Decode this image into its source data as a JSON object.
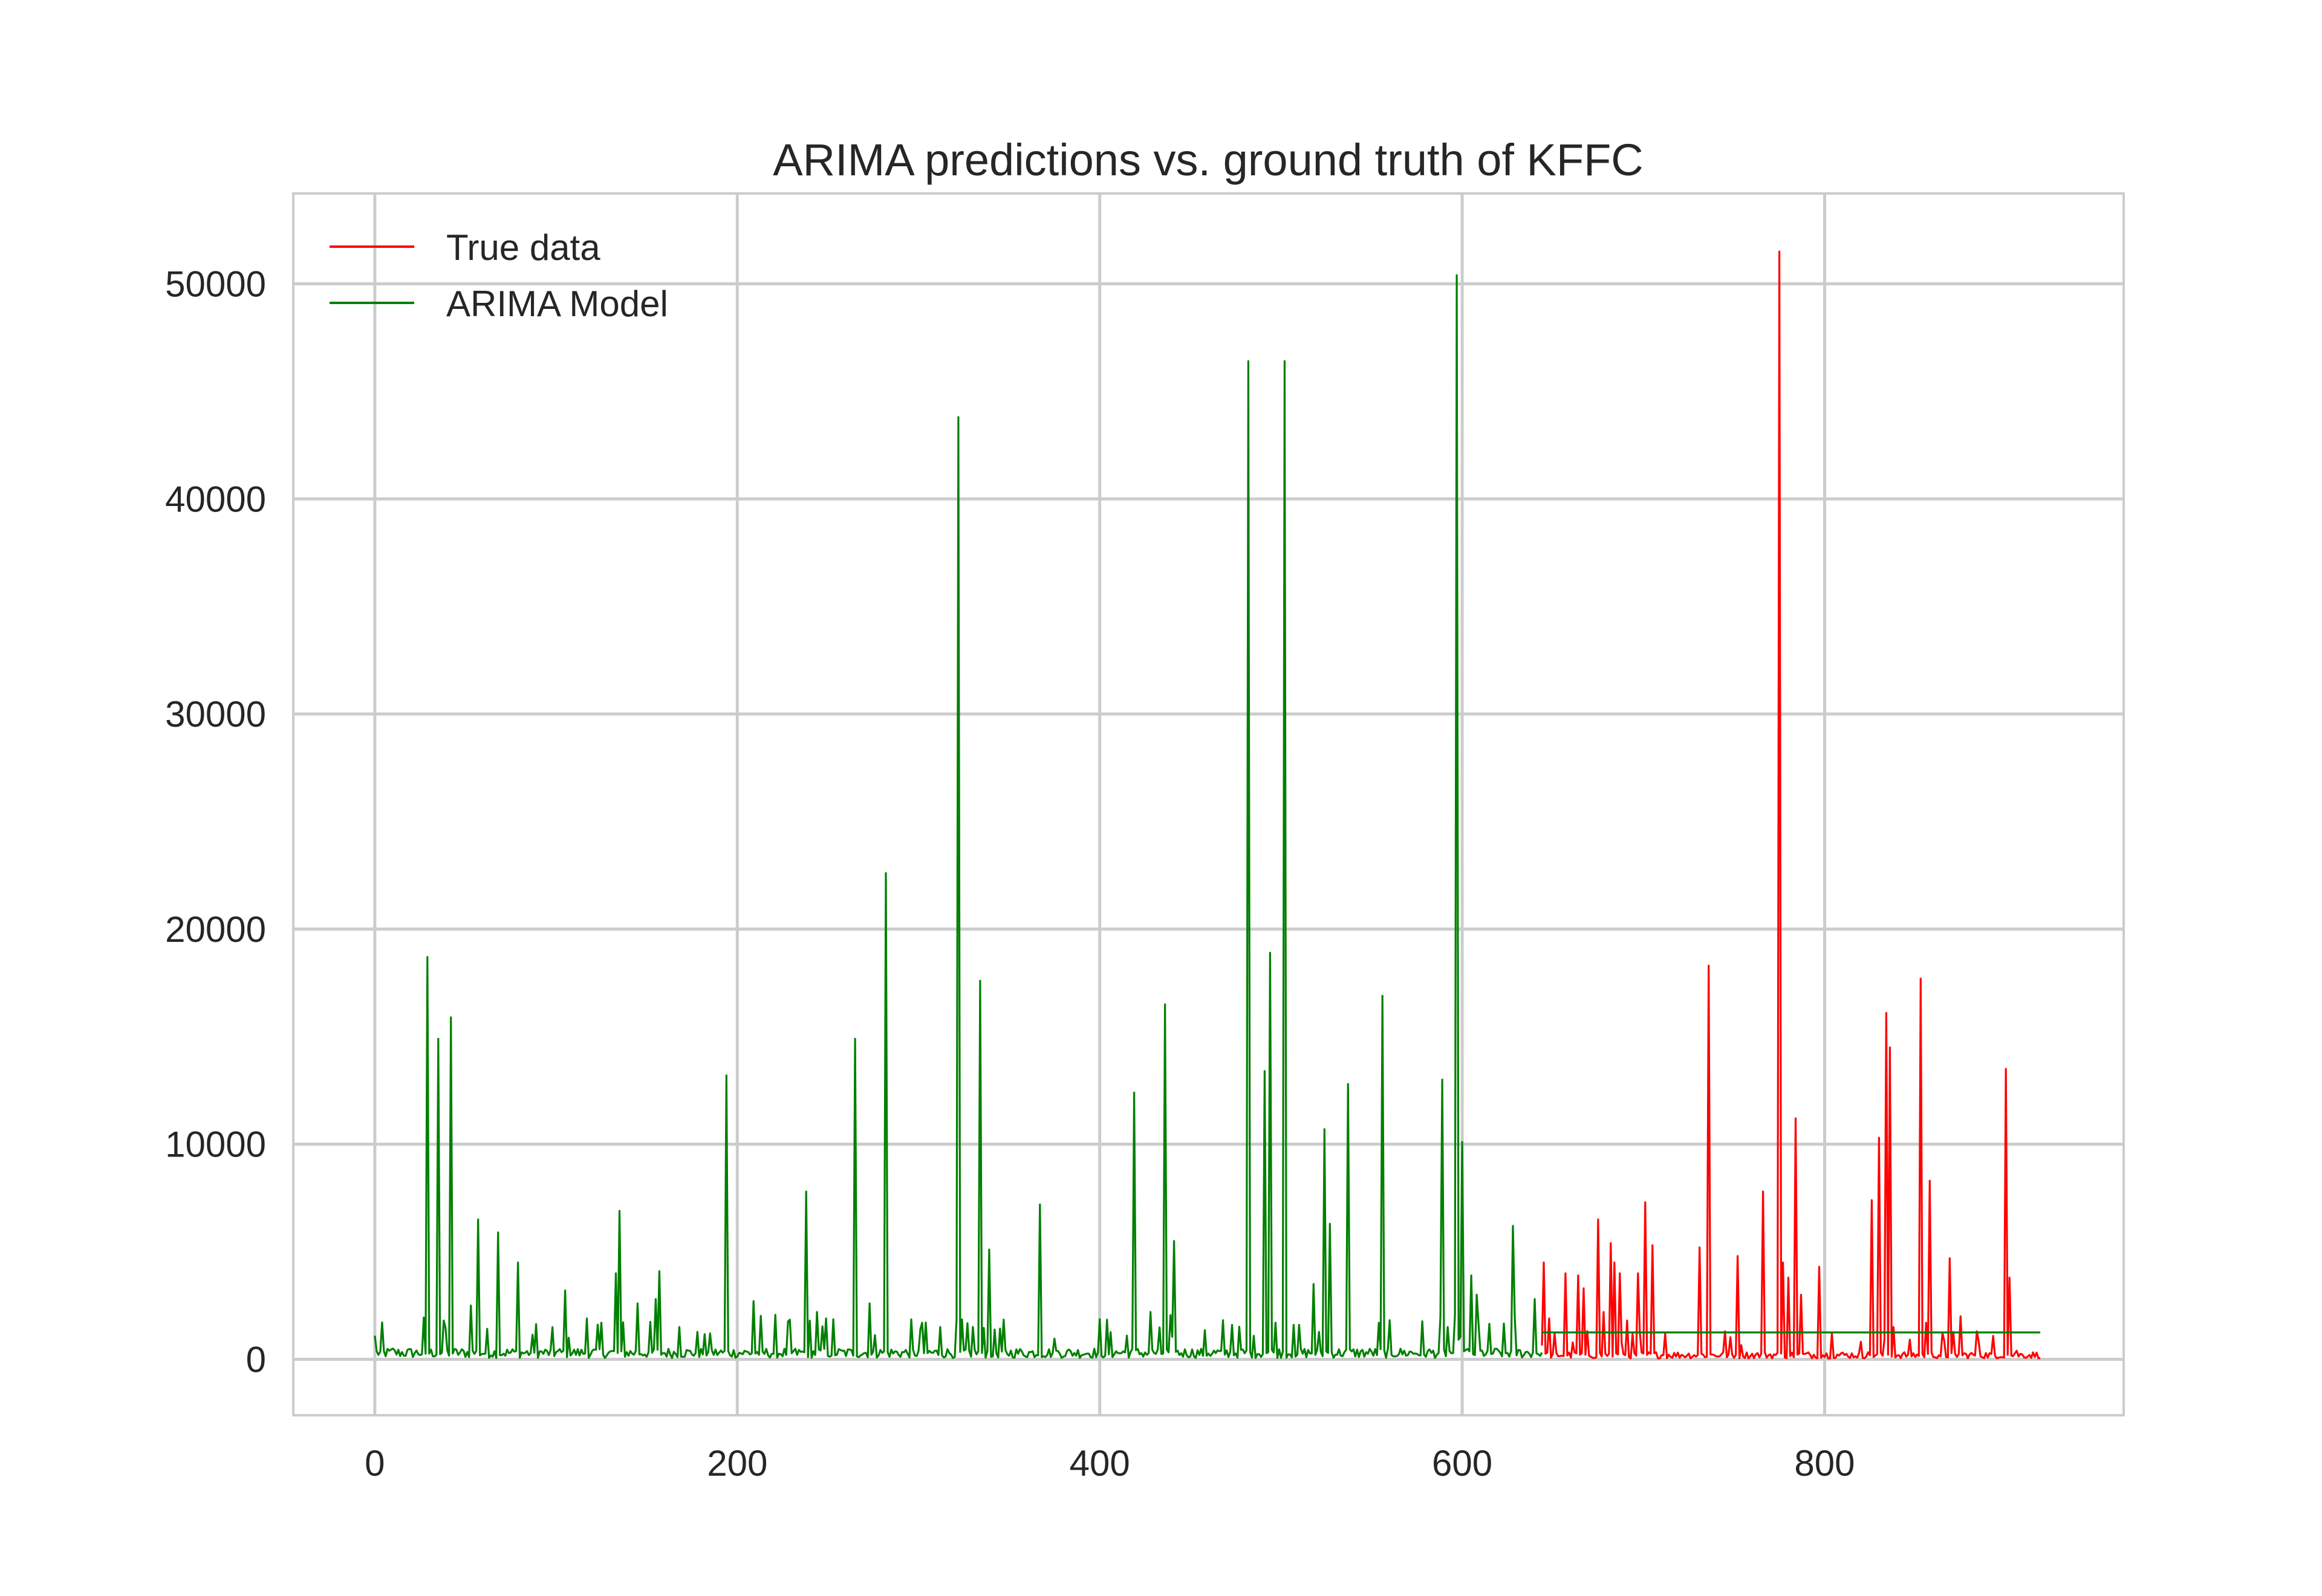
{
  "chart_data": {
    "type": "line",
    "title": "ARIMA predictions vs. ground truth of KFFC",
    "xlabel": "",
    "ylabel": "",
    "xlim": [
      -45,
      965
    ],
    "ylim": [
      -2600,
      54200
    ],
    "x_ticks": [
      0,
      200,
      400,
      600,
      800
    ],
    "x_tick_labels": [
      "0",
      "200",
      "400",
      "600",
      "800"
    ],
    "y_ticks": [
      0,
      10000,
      20000,
      30000,
      40000,
      50000
    ],
    "y_tick_labels": [
      "0",
      "10000",
      "20000",
      "30000",
      "40000",
      "50000"
    ],
    "grid": true,
    "legend": "upper left",
    "series": [
      {
        "name": "True data",
        "color": "#ff0000",
        "x_start": 644,
        "x_end": 919,
        "baseline": 200,
        "peaks": [
          [
            645,
            4500
          ],
          [
            648,
            1900
          ],
          [
            657,
            4000
          ],
          [
            664,
            3900
          ],
          [
            667,
            3300
          ],
          [
            675,
            6500
          ],
          [
            678,
            2200
          ],
          [
            682,
            5400
          ],
          [
            684,
            4500
          ],
          [
            687,
            4000
          ],
          [
            691,
            1800
          ],
          [
            697,
            4000
          ],
          [
            701,
            7300
          ],
          [
            705,
            5300
          ],
          [
            712,
            1200
          ],
          [
            731,
            5200
          ],
          [
            736,
            18300
          ],
          [
            745,
            1300
          ],
          [
            752,
            4800
          ],
          [
            766,
            7800
          ],
          [
            775,
            51500
          ],
          [
            777,
            4500
          ],
          [
            780,
            3800
          ],
          [
            784,
            11200
          ],
          [
            787,
            3000
          ],
          [
            797,
            4300
          ],
          [
            804,
            1200
          ],
          [
            826,
            7400
          ],
          [
            830,
            10300
          ],
          [
            834,
            16100
          ],
          [
            836,
            14500
          ],
          [
            838,
            1500
          ],
          [
            853,
            17700
          ],
          [
            856,
            1700
          ],
          [
            858,
            8300
          ],
          [
            869,
            4700
          ],
          [
            875,
            2000
          ],
          [
            884,
            1300
          ],
          [
            900,
            13500
          ],
          [
            902,
            3800
          ],
          [
            906,
            400
          ]
        ]
      },
      {
        "name": "ARIMA Model",
        "color": "#008000",
        "fit_end": 644,
        "forecast": [
          [
            644,
            1250
          ],
          [
            919,
            1250
          ]
        ],
        "baseline": 300,
        "peaks": [
          [
            0,
            1100
          ],
          [
            10,
            500
          ],
          [
            29,
            18700
          ],
          [
            35,
            14900
          ],
          [
            38,
            1800
          ],
          [
            42,
            15900
          ],
          [
            53,
            2500
          ],
          [
            57,
            6500
          ],
          [
            68,
            5900
          ],
          [
            79,
            4500
          ],
          [
            105,
            3200
          ],
          [
            117,
            1900
          ],
          [
            125,
            1700
          ],
          [
            133,
            4000
          ],
          [
            135,
            6900
          ],
          [
            145,
            2600
          ],
          [
            155,
            2800
          ],
          [
            157,
            4100
          ],
          [
            168,
            1500
          ],
          [
            194,
            13200
          ],
          [
            209,
            2700
          ],
          [
            238,
            7800
          ],
          [
            244,
            2200
          ],
          [
            249,
            1900
          ],
          [
            265,
            14900
          ],
          [
            273,
            2600
          ],
          [
            282,
            22600
          ],
          [
            302,
            1700
          ],
          [
            312,
            1500
          ],
          [
            322,
            43800
          ],
          [
            330,
            1500
          ],
          [
            334,
            17600
          ],
          [
            339,
            5100
          ],
          [
            367,
            7200
          ],
          [
            415,
            1100
          ],
          [
            419,
            12400
          ],
          [
            428,
            2200
          ],
          [
            436,
            16500
          ],
          [
            441,
            5500
          ],
          [
            473,
            1600
          ],
          [
            482,
            46400
          ],
          [
            491,
            13400
          ],
          [
            494,
            18900
          ],
          [
            497,
            1700
          ],
          [
            502,
            46400
          ],
          [
            507,
            1600
          ],
          [
            518,
            3500
          ],
          [
            524,
            10700
          ],
          [
            527,
            6300
          ],
          [
            537,
            12800
          ],
          [
            556,
            16900
          ],
          [
            589,
            13000
          ],
          [
            592,
            1500
          ],
          [
            597,
            50400
          ],
          [
            600,
            10100
          ],
          [
            605,
            3900
          ],
          [
            608,
            3000
          ],
          [
            628,
            6200
          ],
          [
            640,
            2800
          ]
        ]
      }
    ]
  }
}
